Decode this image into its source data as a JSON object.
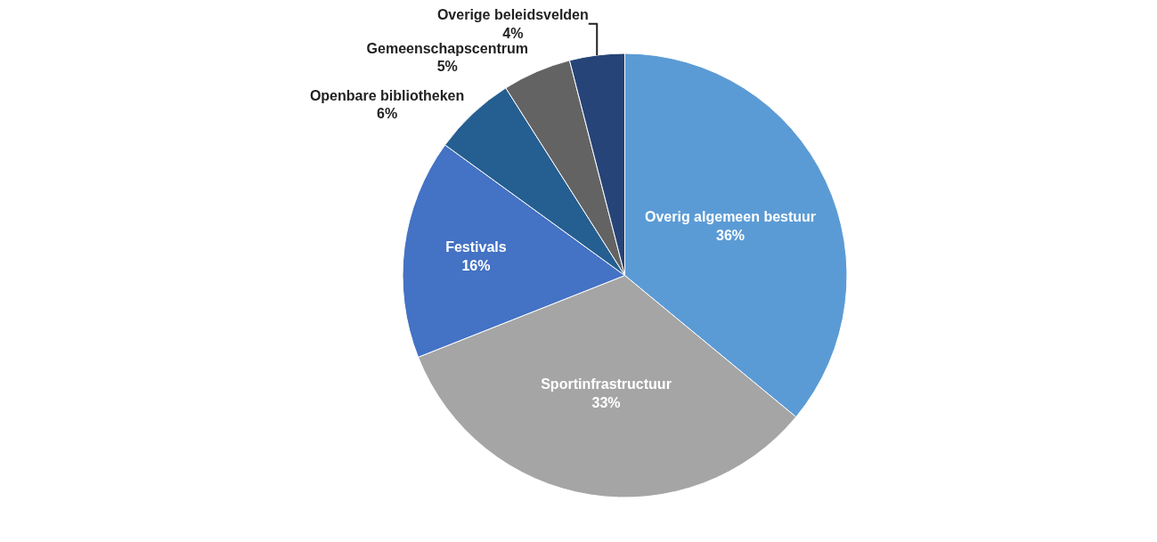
{
  "chart_data": {
    "type": "pie",
    "categories": [
      "Overig algemeen bestuur",
      "Sportinfrastructuur",
      "Festivals",
      "Openbare bibliotheken",
      "Gemeenschapscentrum",
      "Overige beleidsvelden"
    ],
    "values": [
      36,
      33,
      16,
      6,
      5,
      4
    ],
    "colors": [
      "#5b9bd5",
      "#a5a5a5",
      "#4472c4",
      "#255e91",
      "#636363",
      "#264478"
    ],
    "value_labels": [
      "36%",
      "33%",
      "16%",
      "6%",
      "5%",
      "4%"
    ],
    "legend": false
  }
}
